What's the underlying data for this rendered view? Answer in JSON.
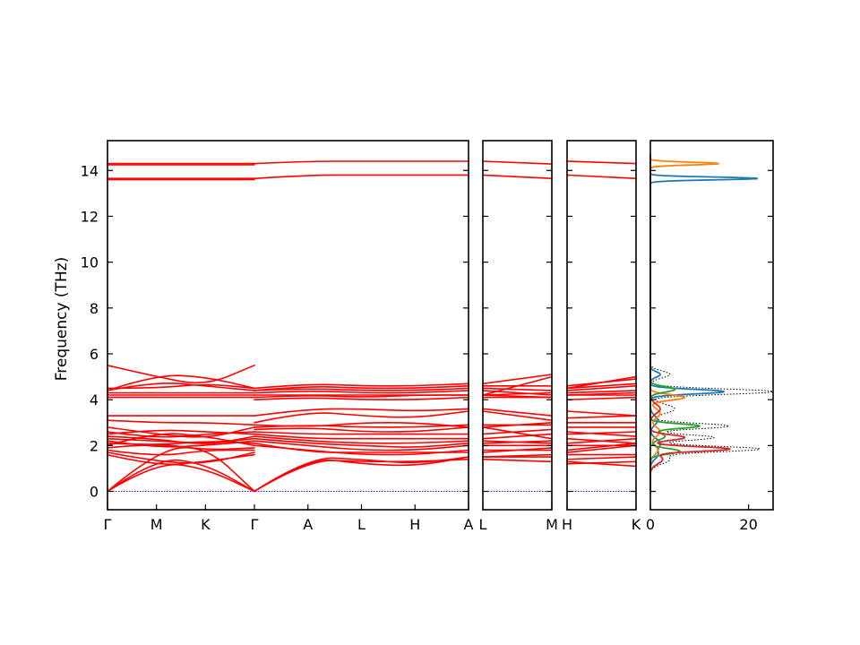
{
  "chart_data": {
    "type": "line",
    "ylabel": "Frequency (THz)",
    "ylim": [
      -0.8,
      15.3
    ],
    "yticks": [
      0,
      2,
      4,
      6,
      8,
      10,
      12,
      14
    ],
    "colors": {
      "band": "#ff0000",
      "zero_line": "#0000cc"
    },
    "band_panels": [
      {
        "xticks": [
          "Γ",
          "M",
          "K",
          "Γ",
          "A",
          "L",
          "H",
          "A"
        ],
        "segments": [
          {
            "bands": [
              [
                0.0,
                1.5,
                1.2,
                0.0
              ],
              [
                0.0,
                1.3,
                1.0,
                0.0
              ],
              [
                0.0,
                1.8,
                2.0,
                0.0
              ],
              [
                1.6,
                1.1,
                1.3,
                1.6
              ],
              [
                1.7,
                1.3,
                1.2,
                1.7
              ],
              [
                1.8,
                1.5,
                1.8,
                1.8
              ],
              [
                1.9,
                2.1,
                1.8,
                1.9
              ],
              [
                2.0,
                2.6,
                2.4,
                2.0
              ],
              [
                2.1,
                2.0,
                2.2,
                2.1
              ],
              [
                2.2,
                1.9,
                2.0,
                2.2
              ],
              [
                2.3,
                2.2,
                2.1,
                2.3
              ],
              [
                2.4,
                2.3,
                2.0,
                2.4
              ],
              [
                2.5,
                2.7,
                2.6,
                2.5
              ],
              [
                2.6,
                2.3,
                2.5,
                2.6
              ],
              [
                2.8,
                2.5,
                2.3,
                2.8
              ],
              [
                3.1,
                3.0,
                3.0,
                2.9
              ],
              [
                3.3,
                3.3,
                3.3,
                3.3
              ],
              [
                4.1,
                4.1,
                4.1,
                4.1
              ],
              [
                4.2,
                4.2,
                4.2,
                4.2
              ],
              [
                4.3,
                4.3,
                4.3,
                4.3
              ],
              [
                4.4,
                4.8,
                4.6,
                4.4
              ],
              [
                4.5,
                4.5,
                4.7,
                4.5
              ],
              [
                5.5,
                5.0,
                4.6,
                5.5
              ],
              [
                4.4,
                5.1,
                5.0,
                4.5
              ],
              [
                13.6,
                13.6,
                13.6,
                13.6
              ],
              [
                13.65,
                13.65,
                13.65,
                13.65
              ],
              [
                14.25,
                14.25,
                14.25,
                14.25
              ],
              [
                14.3,
                14.3,
                14.3,
                14.3
              ]
            ]
          },
          {
            "bands": [
              [
                0.0,
                1.4,
                1.3,
                1.3,
                1.4
              ],
              [
                0.0,
                1.5,
                1.2,
                1.1,
                1.5
              ],
              [
                0.0,
                1.5,
                1.4,
                1.2,
                1.5
              ],
              [
                2.0,
                1.8,
                1.6,
                1.6,
                1.8
              ],
              [
                2.1,
                1.7,
                1.7,
                1.7,
                1.7
              ],
              [
                2.2,
                2.0,
                1.8,
                1.8,
                2.0
              ],
              [
                2.3,
                2.1,
                2.0,
                1.9,
                2.1
              ],
              [
                2.4,
                2.2,
                2.1,
                2.1,
                2.2
              ],
              [
                2.5,
                2.3,
                2.3,
                2.3,
                2.3
              ],
              [
                2.6,
                2.5,
                2.5,
                2.5,
                2.5
              ],
              [
                2.7,
                2.8,
                2.6,
                2.6,
                2.8
              ],
              [
                2.8,
                2.9,
                2.8,
                2.8,
                2.9
              ],
              [
                2.9,
                2.8,
                3.0,
                3.0,
                2.8
              ],
              [
                3.0,
                3.5,
                3.3,
                3.2,
                3.5
              ],
              [
                3.3,
                3.6,
                3.6,
                3.5,
                3.6
              ],
              [
                4.0,
                4.1,
                4.0,
                4.0,
                4.1
              ],
              [
                4.1,
                4.2,
                4.1,
                4.2,
                4.2
              ],
              [
                4.2,
                4.2,
                4.2,
                4.2,
                4.2
              ],
              [
                4.3,
                4.4,
                4.3,
                4.3,
                4.4
              ],
              [
                4.4,
                4.5,
                4.4,
                4.4,
                4.5
              ],
              [
                4.4,
                4.6,
                4.5,
                4.5,
                4.6
              ],
              [
                4.5,
                4.7,
                4.6,
                4.6,
                4.7
              ],
              [
                13.65,
                13.8,
                13.8,
                13.8,
                13.8
              ],
              [
                14.3,
                14.4,
                14.4,
                14.4,
                14.4
              ]
            ]
          }
        ]
      },
      {
        "xticks": [
          "L",
          "M"
        ],
        "segments": [
          {
            "bands": [
              [
                1.4,
                1.3
              ],
              [
                1.5,
                1.5
              ],
              [
                1.5,
                1.6
              ],
              [
                1.8,
                1.8
              ],
              [
                1.7,
                1.9
              ],
              [
                2.0,
                2.0
              ],
              [
                2.1,
                2.2
              ],
              [
                2.2,
                2.1
              ],
              [
                2.3,
                2.5
              ],
              [
                2.5,
                2.7
              ],
              [
                2.8,
                2.3
              ],
              [
                2.9,
                2.9
              ],
              [
                2.8,
                3.0
              ],
              [
                3.5,
                3.1
              ],
              [
                3.6,
                3.3
              ],
              [
                4.1,
                4.1
              ],
              [
                4.2,
                4.1
              ],
              [
                4.2,
                4.3
              ],
              [
                4.4,
                4.2
              ],
              [
                4.5,
                4.4
              ],
              [
                4.6,
                4.6
              ],
              [
                4.7,
                5.1
              ],
              [
                4.2,
                5.0
              ],
              [
                13.8,
                13.65
              ],
              [
                14.4,
                14.28
              ]
            ]
          }
        ]
      },
      {
        "xticks": [
          "H",
          "K"
        ],
        "segments": [
          {
            "bands": [
              [
                1.3,
                1.1
              ],
              [
                1.2,
                1.3
              ],
              [
                1.4,
                1.5
              ],
              [
                1.6,
                1.6
              ],
              [
                1.7,
                2.0
              ],
              [
                1.8,
                2.1
              ],
              [
                2.0,
                2.0
              ],
              [
                2.1,
                2.3
              ],
              [
                2.3,
                2.1
              ],
              [
                2.5,
                2.6
              ],
              [
                2.6,
                2.4
              ],
              [
                2.8,
                2.8
              ],
              [
                3.0,
                3.0
              ],
              [
                3.2,
                3.3
              ],
              [
                3.5,
                3.3
              ],
              [
                4.0,
                4.1
              ],
              [
                4.2,
                4.2
              ],
              [
                4.2,
                4.3
              ],
              [
                4.3,
                4.4
              ],
              [
                4.4,
                4.6
              ],
              [
                4.5,
                4.7
              ],
              [
                4.6,
                4.9
              ],
              [
                4.5,
                5.0
              ],
              [
                13.8,
                13.65
              ],
              [
                14.4,
                14.3
              ]
            ]
          }
        ]
      }
    ],
    "dos": {
      "xlim": [
        0,
        25
      ],
      "xticks": [
        0,
        20
      ],
      "series": [
        {
          "color": "#1f77b4",
          "peaks": [
            [
              4.35,
              15.0,
              0.1
            ],
            [
              13.65,
              22.0,
              0.06
            ],
            [
              5.1,
              2.0,
              0.12
            ],
            [
              2.1,
              2.0,
              0.2
            ],
            [
              3.1,
              1.5,
              0.2
            ],
            [
              1.6,
              1.5,
              0.2
            ]
          ]
        },
        {
          "color": "#ff7f0e",
          "peaks": [
            [
              14.3,
              14.0,
              0.06
            ],
            [
              4.1,
              7.0,
              0.12
            ],
            [
              3.4,
              2.0,
              0.2
            ],
            [
              2.6,
              2.0,
              0.2
            ],
            [
              1.8,
              1.5,
              0.2
            ]
          ]
        },
        {
          "color": "#2ca02c",
          "peaks": [
            [
              2.85,
              10.0,
              0.1
            ],
            [
              4.45,
              5.0,
              0.12
            ],
            [
              1.75,
              6.0,
              0.12
            ],
            [
              2.4,
              3.0,
              0.15
            ]
          ]
        },
        {
          "color": "#d62728",
          "peaks": [
            [
              1.85,
              16.0,
              0.1
            ],
            [
              2.35,
              7.0,
              0.12
            ],
            [
              3.6,
              2.0,
              0.2
            ],
            [
              1.4,
              2.5,
              0.2
            ]
          ]
        }
      ],
      "total": {
        "color": "#000000",
        "peaks": [
          [
            1.85,
            22.0,
            0.12
          ],
          [
            2.35,
            13.0,
            0.12
          ],
          [
            2.85,
            16.0,
            0.12
          ],
          [
            4.35,
            25.0,
            0.12
          ],
          [
            3.6,
            5.0,
            0.2
          ],
          [
            13.65,
            22.0,
            0.06
          ],
          [
            14.3,
            14.0,
            0.06
          ],
          [
            5.1,
            4.0,
            0.15
          ],
          [
            1.4,
            4.0,
            0.2
          ]
        ]
      }
    }
  }
}
